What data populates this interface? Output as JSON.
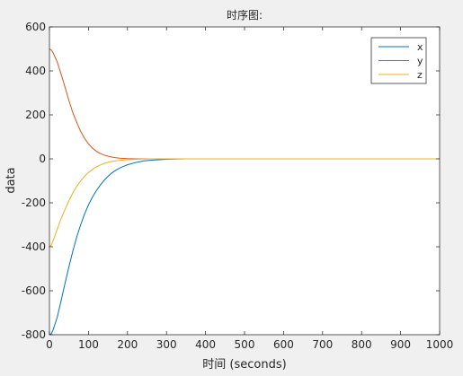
{
  "chart_data": {
    "type": "line",
    "title": "时序图:",
    "xlabel": "时间 (seconds)",
    "ylabel": "data",
    "xlim": [
      0,
      1000
    ],
    "ylim": [
      -800,
      600
    ],
    "xticks": [
      0,
      100,
      200,
      300,
      400,
      500,
      600,
      700,
      800,
      900,
      1000
    ],
    "yticks": [
      -800,
      -600,
      -400,
      -200,
      0,
      200,
      400,
      600
    ],
    "grid": false,
    "legend_position": "top-right",
    "series": [
      {
        "name": "x",
        "color": "#0072bd",
        "x": [
          0,
          5,
          10,
          20,
          30,
          40,
          50,
          60,
          70,
          80,
          90,
          100,
          110,
          120,
          130,
          140,
          150,
          160,
          170,
          180,
          190,
          200,
          220,
          240,
          260,
          280,
          300,
          325,
          350,
          375,
          400,
          450,
          500,
          550,
          600,
          650,
          700,
          750,
          800,
          850,
          900,
          950,
          1000
        ],
        "y": [
          -800,
          -795,
          -775,
          -720,
          -645,
          -565,
          -490,
          -420,
          -355,
          -300,
          -250,
          -210,
          -175,
          -145,
          -120,
          -98,
          -80,
          -64,
          -52,
          -42,
          -34,
          -27,
          -17,
          -10,
          -6,
          -4,
          -2,
          -1,
          0,
          0,
          0,
          0,
          0,
          0,
          0,
          0,
          0,
          0,
          0,
          0,
          0,
          0,
          0
        ]
      },
      {
        "name": "y",
        "color": "#d95319",
        "x": [
          0,
          5,
          10,
          20,
          30,
          40,
          50,
          60,
          70,
          80,
          90,
          100,
          110,
          120,
          130,
          140,
          150,
          160,
          170,
          180,
          190,
          200,
          220,
          240,
          260,
          280,
          300,
          325,
          350,
          375,
          400,
          450,
          500,
          550,
          600,
          650,
          700,
          750,
          800,
          850,
          900,
          950,
          1000
        ],
        "y": [
          500,
          495,
          480,
          440,
          385,
          325,
          265,
          210,
          165,
          125,
          93,
          68,
          49,
          35,
          25,
          17,
          12,
          8,
          5,
          3,
          2,
          1,
          0,
          0,
          0,
          0,
          0,
          0,
          0,
          0,
          0,
          0,
          0,
          0,
          0,
          0,
          0,
          0,
          0,
          0,
          0,
          0,
          0
        ]
      },
      {
        "name": "z",
        "color": "#edb120",
        "x": [
          0,
          5,
          10,
          20,
          30,
          40,
          50,
          60,
          70,
          80,
          90,
          100,
          110,
          120,
          130,
          140,
          150,
          160,
          170,
          180,
          190,
          200,
          220,
          240,
          260,
          280,
          300,
          325,
          350,
          375,
          400,
          450,
          500,
          550,
          600,
          650,
          700,
          750,
          800,
          850,
          900,
          950,
          1000
        ],
        "y": [
          -400,
          -392,
          -370,
          -320,
          -272,
          -230,
          -190,
          -155,
          -125,
          -100,
          -79,
          -62,
          -48,
          -37,
          -28,
          -21,
          -16,
          -12,
          -9,
          -7,
          -5,
          -4,
          -2,
          -1,
          0,
          0,
          0,
          0,
          0,
          0,
          0,
          0,
          0,
          0,
          0,
          0,
          0,
          0,
          0,
          0,
          0,
          0,
          0
        ]
      }
    ]
  }
}
